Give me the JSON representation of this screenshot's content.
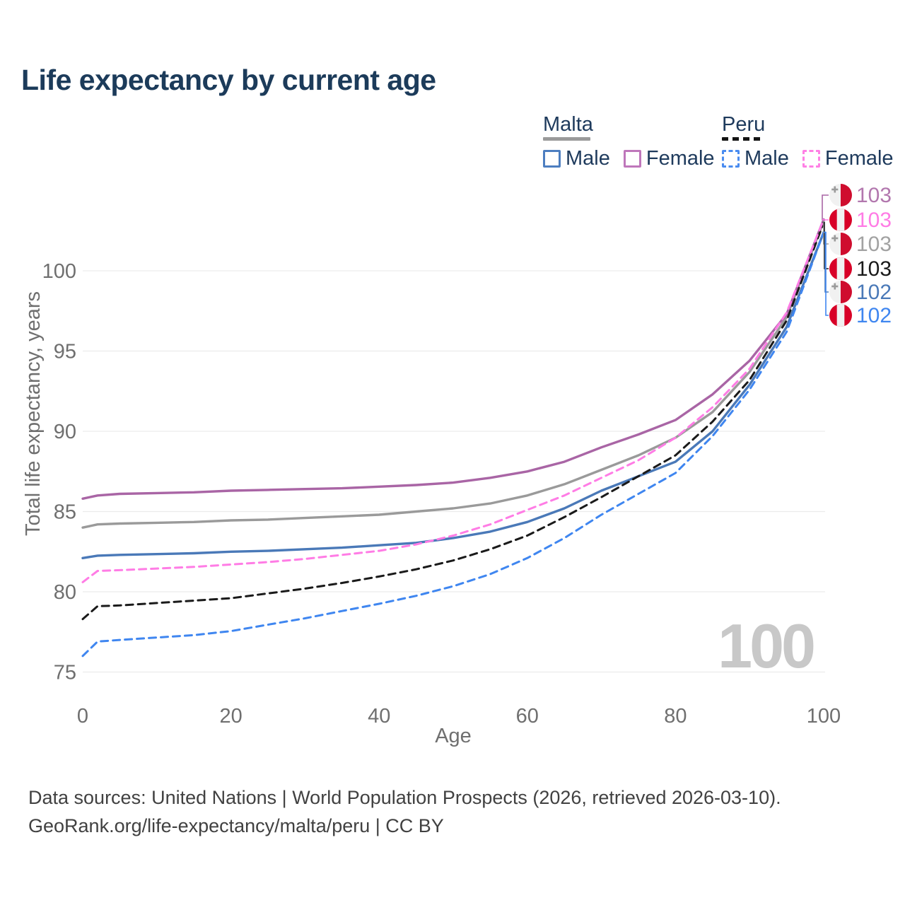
{
  "title": "Life expectancy by current age",
  "legend": {
    "groups": [
      {
        "country": "Malta",
        "style": "solid",
        "line_color": "#9a9a9a",
        "items": [
          {
            "label": "Male",
            "color": "#4d7ec0"
          },
          {
            "label": "Female",
            "color": "#bf77bb"
          }
        ]
      },
      {
        "country": "Peru",
        "style": "dashed",
        "line_color": "#141414",
        "items": [
          {
            "label": "Male",
            "color": "#4a8cf0"
          },
          {
            "label": "Female",
            "color": "#ff80e5"
          }
        ]
      }
    ]
  },
  "watermark": "100",
  "footer": {
    "line1": "Data sources: United Nations | World Population Prospects (2026, retrieved 2026-03-10).",
    "line2": "GeoRank.org/life-expectancy/malta/peru | CC BY"
  },
  "chart_data": {
    "type": "line",
    "title": "Life expectancy by current age",
    "xlabel": "Age",
    "ylabel": "Total life expectancy, years",
    "xlim": [
      0,
      100
    ],
    "ylim": [
      75,
      103.5
    ],
    "xticks": [
      0,
      20,
      40,
      60,
      80,
      100
    ],
    "yticks": [
      75,
      80,
      85,
      90,
      95,
      100
    ],
    "grid": "horizontal",
    "legend_position": "top-right",
    "x": [
      0,
      2,
      5,
      10,
      15,
      20,
      25,
      30,
      35,
      40,
      45,
      50,
      55,
      60,
      65,
      70,
      75,
      80,
      85,
      90,
      95,
      100
    ],
    "series": [
      {
        "name": "Malta Female",
        "country": "Malta",
        "sex": "Female",
        "color": "#a965a5",
        "dash": false,
        "end_label": "103",
        "values": [
          85.8,
          86.0,
          86.1,
          86.15,
          86.2,
          86.3,
          86.35,
          86.4,
          86.45,
          86.55,
          86.65,
          86.8,
          87.1,
          87.5,
          88.1,
          89.0,
          89.8,
          90.7,
          92.3,
          94.4,
          97.3,
          103.2
        ]
      },
      {
        "name": "Malta Both sexes",
        "country": "Malta",
        "sex": "Both",
        "color": "#9a9a9a",
        "dash": false,
        "end_label": "103",
        "values": [
          84.0,
          84.2,
          84.25,
          84.3,
          84.35,
          84.45,
          84.5,
          84.6,
          84.7,
          84.8,
          85.0,
          85.2,
          85.5,
          86.0,
          86.7,
          87.6,
          88.5,
          89.6,
          91.2,
          93.7,
          97.1,
          103.1
        ]
      },
      {
        "name": "Malta Male",
        "country": "Malta",
        "sex": "Male",
        "color": "#4a79b8",
        "dash": false,
        "end_label": "102",
        "values": [
          82.1,
          82.25,
          82.3,
          82.35,
          82.4,
          82.5,
          82.55,
          82.65,
          82.75,
          82.9,
          83.05,
          83.35,
          83.75,
          84.35,
          85.2,
          86.3,
          87.2,
          88.1,
          90.0,
          92.9,
          96.5,
          102.4
        ]
      },
      {
        "name": "Peru Female",
        "country": "Peru",
        "sex": "Female",
        "color": "#ff7ce5",
        "dash": true,
        "end_label": "103",
        "values": [
          80.6,
          81.3,
          81.35,
          81.45,
          81.55,
          81.7,
          81.85,
          82.05,
          82.3,
          82.55,
          82.95,
          83.5,
          84.2,
          85.1,
          86.0,
          87.1,
          88.2,
          89.6,
          91.5,
          93.9,
          97.4,
          103.2
        ]
      },
      {
        "name": "Peru Both sexes",
        "country": "Peru",
        "sex": "Both",
        "color": "#1a1a1a",
        "dash": true,
        "end_label": "103",
        "values": [
          78.3,
          79.1,
          79.15,
          79.3,
          79.45,
          79.6,
          79.9,
          80.2,
          80.55,
          80.95,
          81.4,
          81.95,
          82.65,
          83.5,
          84.65,
          85.9,
          87.2,
          88.5,
          90.6,
          93.2,
          96.9,
          103.0
        ]
      },
      {
        "name": "Peru Male",
        "country": "Peru",
        "sex": "Male",
        "color": "#3f86f0",
        "dash": true,
        "end_label": "102",
        "values": [
          76.0,
          76.9,
          77.0,
          77.15,
          77.3,
          77.55,
          77.95,
          78.35,
          78.8,
          79.25,
          79.75,
          80.35,
          81.1,
          82.1,
          83.35,
          84.8,
          86.1,
          87.4,
          89.7,
          92.6,
          96.2,
          102.4
        ]
      }
    ],
    "end_labels": [
      {
        "series": "Malta Female",
        "country": "Malta",
        "value": "103",
        "color": "#b277ae"
      },
      {
        "series": "Peru Female",
        "country": "Peru",
        "value": "103",
        "color": "#ff7ce5"
      },
      {
        "series": "Malta Both sexes",
        "country": "Malta",
        "value": "103",
        "color": "#a2a2a2"
      },
      {
        "series": "Peru Both sexes",
        "country": "Peru",
        "value": "103",
        "color": "#1a1a1a"
      },
      {
        "series": "Malta Male",
        "country": "Malta",
        "value": "102",
        "color": "#4a79b8"
      },
      {
        "series": "Peru Male",
        "country": "Peru",
        "value": "102",
        "color": "#3f86f0"
      }
    ]
  }
}
